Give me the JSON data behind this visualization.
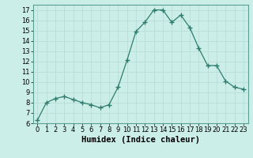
{
  "x": [
    0,
    1,
    2,
    3,
    4,
    5,
    6,
    7,
    8,
    9,
    10,
    11,
    12,
    13,
    14,
    15,
    16,
    17,
    18,
    19,
    20,
    21,
    22,
    23
  ],
  "y": [
    6.3,
    8.0,
    8.4,
    8.6,
    8.3,
    8.0,
    7.8,
    7.5,
    7.8,
    9.5,
    12.1,
    14.9,
    15.8,
    17.0,
    17.0,
    15.8,
    16.5,
    15.3,
    13.3,
    11.6,
    11.6,
    10.1,
    9.5,
    9.3
  ],
  "line_color": "#2e7d6e",
  "marker": "+",
  "marker_size": 4,
  "bg_color": "#cceee8",
  "grid_color": "#b8ddd8",
  "xlabel": "Humidex (Indice chaleur)",
  "ylim": [
    6,
    17.5
  ],
  "xlim": [
    -0.5,
    23.5
  ],
  "yticks": [
    6,
    7,
    8,
    9,
    10,
    11,
    12,
    13,
    14,
    15,
    16,
    17
  ],
  "xticks": [
    0,
    1,
    2,
    3,
    4,
    5,
    6,
    7,
    8,
    9,
    10,
    11,
    12,
    13,
    14,
    15,
    16,
    17,
    18,
    19,
    20,
    21,
    22,
    23
  ],
  "tick_fontsize": 6,
  "xlabel_fontsize": 7.5
}
